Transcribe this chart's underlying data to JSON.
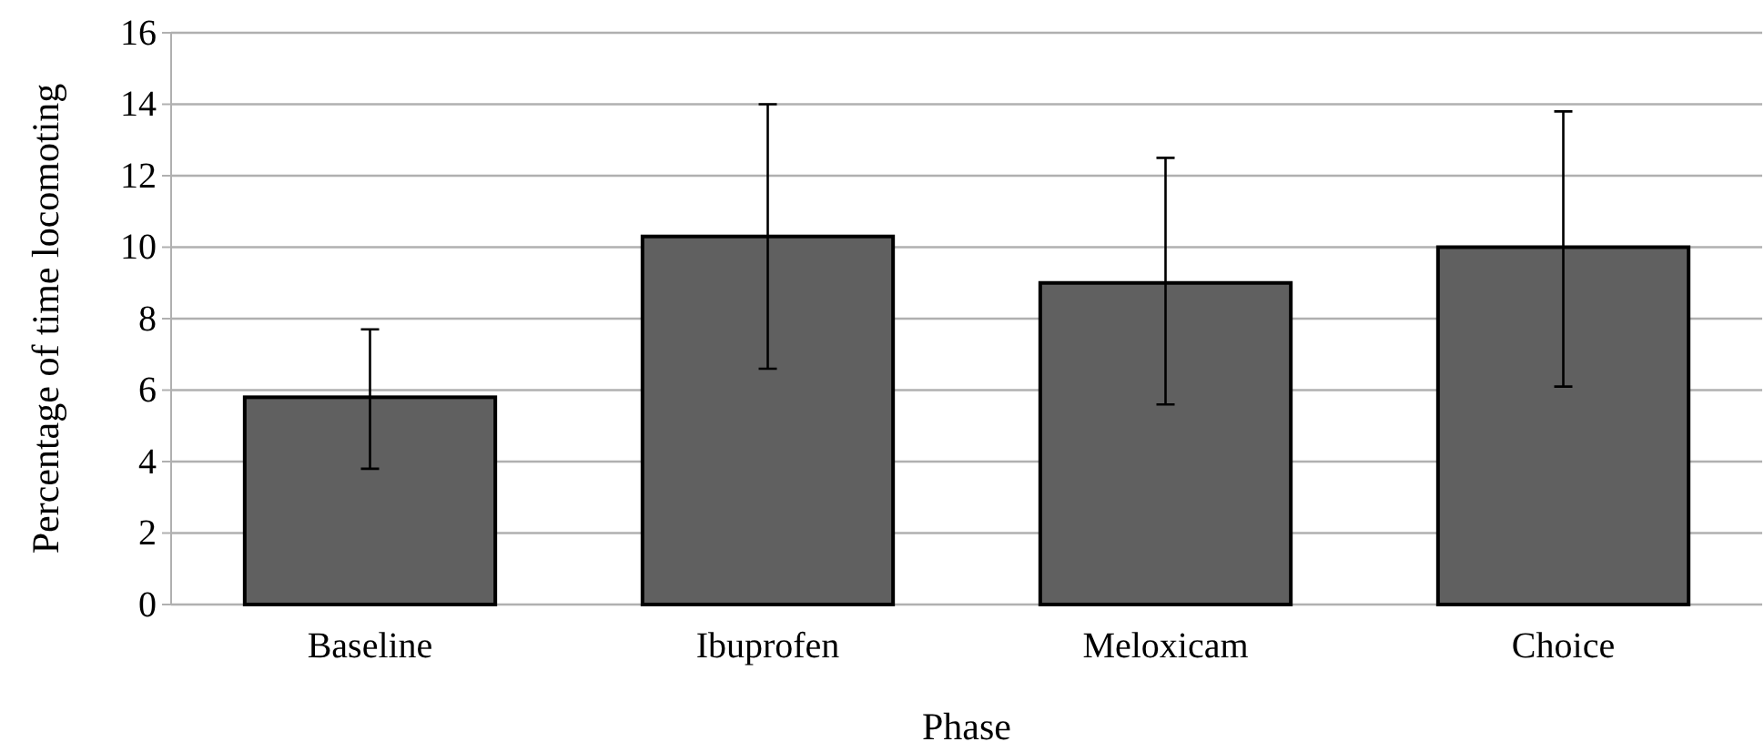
{
  "chart_data": {
    "type": "bar",
    "xlabel": "Phase",
    "ylabel": "Percentage of time locomoting",
    "categories": [
      "Baseline",
      "Ibuprofen",
      "Meloxicam",
      "Choice"
    ],
    "values": [
      5.8,
      10.3,
      9.0,
      10.0
    ],
    "color": "#606060",
    "errors": [
      [
        3.8,
        7.7
      ],
      [
        6.6,
        14.0
      ],
      [
        5.6,
        12.5
      ],
      [
        6.1,
        13.8
      ]
    ],
    "ylim": [
      0,
      16
    ],
    "yticks": [
      0,
      2,
      4,
      6,
      8,
      10,
      12,
      14,
      16
    ],
    "grid": "y"
  }
}
